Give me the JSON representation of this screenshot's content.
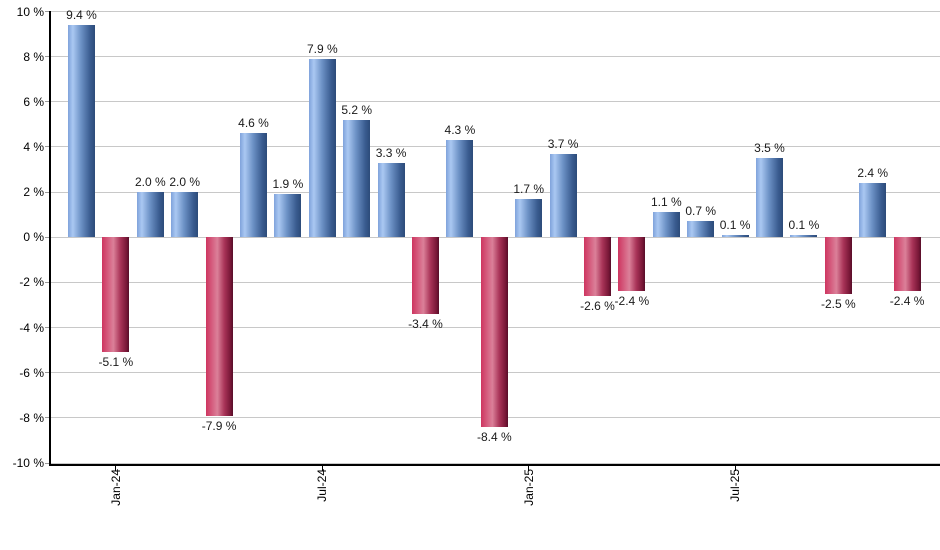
{
  "chart_data": {
    "type": "bar",
    "title": "",
    "xlabel": "",
    "ylabel": "",
    "unit": "%",
    "ylim": [
      -10,
      10
    ],
    "grid": true,
    "legend": "none",
    "y_ticks": [
      {
        "value": 10,
        "label": "10 %"
      },
      {
        "value": 8,
        "label": "8 %"
      },
      {
        "value": 6,
        "label": "6 %"
      },
      {
        "value": 4,
        "label": "4 %"
      },
      {
        "value": 2,
        "label": "2 %"
      },
      {
        "value": 0,
        "label": "0 %"
      },
      {
        "value": -2,
        "label": "-2 %"
      },
      {
        "value": -4,
        "label": "-4 %"
      },
      {
        "value": -6,
        "label": "-6 %"
      },
      {
        "value": -8,
        "label": "-8 %"
      },
      {
        "value": -10,
        "label": "-10 %"
      }
    ],
    "x_ticks": [
      {
        "bar_index": 1,
        "label": "Jan-24"
      },
      {
        "bar_index": 7,
        "label": "Jul-24"
      },
      {
        "bar_index": 13,
        "label": "Jan-25"
      },
      {
        "bar_index": 19,
        "label": "Jul-25"
      }
    ],
    "bars": [
      {
        "value": 9.4,
        "label": "9.4 %"
      },
      {
        "value": -5.1,
        "label": "-5.1 %"
      },
      {
        "value": 2.0,
        "label": "2.0 %"
      },
      {
        "value": 2.0,
        "label": "2.0 %"
      },
      {
        "value": -7.9,
        "label": "-7.9 %"
      },
      {
        "value": 4.6,
        "label": "4.6 %"
      },
      {
        "value": 1.9,
        "label": "1.9 %"
      },
      {
        "value": 7.9,
        "label": "7.9 %"
      },
      {
        "value": 5.2,
        "label": "5.2 %"
      },
      {
        "value": 3.3,
        "label": "3.3 %"
      },
      {
        "value": -3.4,
        "label": "-3.4 %"
      },
      {
        "value": 4.3,
        "label": "4.3 %"
      },
      {
        "value": -8.4,
        "label": "-8.4 %"
      },
      {
        "value": 1.7,
        "label": "1.7 %"
      },
      {
        "value": 3.7,
        "label": "3.7 %"
      },
      {
        "value": -2.6,
        "label": "-2.6 %"
      },
      {
        "value": -2.4,
        "label": "-2.4 %"
      },
      {
        "value": 1.1,
        "label": "1.1 %"
      },
      {
        "value": 0.7,
        "label": "0.7 %"
      },
      {
        "value": 0.1,
        "label": "0.1 %"
      },
      {
        "value": 3.5,
        "label": "3.5 %"
      },
      {
        "value": 0.1,
        "label": "0.1 %"
      },
      {
        "value": -2.5,
        "label": "-2.5 %"
      },
      {
        "value": 2.4,
        "label": "2.4 %"
      },
      {
        "value": -2.4,
        "label": "-2.4 %"
      }
    ],
    "colors": {
      "positive_edge": "#7FA2DB",
      "positive_light": "#AAC8F2",
      "positive_mid": "#6D92C6",
      "positive_shadow": "#3A5C90",
      "positive_dark": "#2C4B79",
      "negative_edge": "#CE3560",
      "negative_light": "#DB8099",
      "negative_mid": "#A93458",
      "negative_shadow": "#7A1838",
      "negative_dark": "#570D29",
      "gridline": "#C8C8C8",
      "axis": "#000000",
      "background": "#FFFFFF"
    }
  }
}
